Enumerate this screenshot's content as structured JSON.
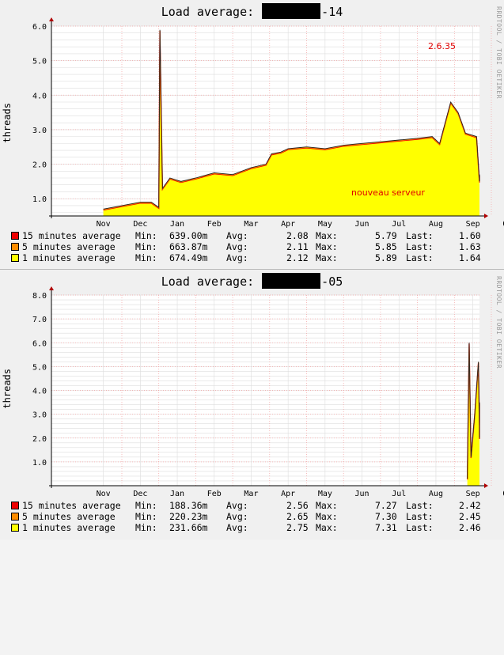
{
  "charts": [
    {
      "title_prefix": "Load average:",
      "title_suffix": "-14",
      "ylabel": "threads",
      "watermark": "RRDTOOL / TOBI OETIKER",
      "months": [
        "Nov",
        "Dec",
        "Jan",
        "Feb",
        "Mar",
        "Apr",
        "May",
        "Jun",
        "Jul",
        "Aug",
        "Sep",
        "Oct"
      ],
      "yticks": [
        "1.0",
        "2.0",
        "3.0",
        "4.0",
        "5.0",
        "6.0"
      ],
      "annotations": {
        "version": "2.6.35",
        "event": "nouveau serveur"
      },
      "legend": [
        {
          "label": "15 minutes average",
          "min": "639.00m",
          "avg": "2.08",
          "max": "5.79",
          "last": "1.60",
          "color": "#ee0000"
        },
        {
          "label": "5 minutes average",
          "min": "663.87m",
          "avg": "2.11",
          "max": "5.85",
          "last": "1.63",
          "color": "#ff8c00"
        },
        {
          "label": "1 minutes average",
          "min": "674.49m",
          "avg": "2.12",
          "max": "5.89",
          "last": "1.64",
          "color": "#ffff00"
        }
      ]
    },
    {
      "title_prefix": "Load average:",
      "title_suffix": "-05",
      "ylabel": "threads",
      "watermark": "RRDTOOL / TOBI OETIKER",
      "months": [
        "Nov",
        "Dec",
        "Jan",
        "Feb",
        "Mar",
        "Apr",
        "May",
        "Jun",
        "Jul",
        "Aug",
        "Sep",
        "Oct"
      ],
      "yticks": [
        "1.0",
        "2.0",
        "3.0",
        "4.0",
        "5.0",
        "6.0",
        "7.0",
        "8.0"
      ],
      "legend": [
        {
          "label": "15 minutes average",
          "min": "188.36m",
          "avg": "2.56",
          "max": "7.27",
          "last": "2.42",
          "color": "#ee0000"
        },
        {
          "label": "5 minutes average",
          "min": "220.23m",
          "avg": "2.65",
          "max": "7.30",
          "last": "2.45",
          "color": "#ff8c00"
        },
        {
          "label": "1 minutes average",
          "min": "231.66m",
          "avg": "2.75",
          "max": "7.31",
          "last": "2.46",
          "color": "#ffff00"
        }
      ]
    }
  ],
  "labels": {
    "min": "Min:",
    "avg": "Avg:",
    "max": "Max:",
    "last": "Last:"
  },
  "chart_data": [
    {
      "type": "area",
      "ylabel": "threads",
      "ylim": [
        0.5,
        6.0
      ],
      "x_unit": "month",
      "x_months": [
        "Nov",
        "Dec",
        "Jan",
        "Feb",
        "Mar",
        "Apr",
        "May",
        "Jun",
        "Jul",
        "Aug",
        "Sep",
        "Oct"
      ],
      "x": [
        -0.5,
        0.0,
        0.5,
        0.8,
        1.0,
        1.03,
        1.1,
        1.3,
        1.6,
        2.0,
        2.5,
        3.0,
        3.5,
        3.9,
        4.05,
        4.3,
        4.5,
        5.0,
        5.5,
        6.0,
        6.5,
        7.0,
        7.5,
        8.0,
        8.4,
        8.6,
        8.9,
        9.1,
        9.3,
        9.6,
        9.75,
        9.9,
        10.0
      ],
      "y": [
        0.7,
        0.8,
        0.9,
        0.9,
        0.75,
        5.89,
        1.3,
        1.6,
        1.5,
        1.6,
        1.75,
        1.7,
        1.9,
        2.0,
        2.3,
        2.35,
        2.45,
        2.5,
        2.45,
        2.55,
        2.6,
        2.65,
        2.7,
        2.75,
        2.8,
        2.6,
        3.8,
        3.5,
        2.9,
        2.8,
        1.5,
        1.7,
        1.64
      ],
      "series": [
        {
          "name": "15 minutes average",
          "min": 0.639,
          "avg": 2.08,
          "max": 5.79,
          "last": 1.6
        },
        {
          "name": "5 minutes average",
          "min": 0.66387,
          "avg": 2.11,
          "max": 5.85,
          "last": 1.63
        },
        {
          "name": "1 minutes average",
          "min": 0.67449,
          "avg": 2.12,
          "max": 5.89,
          "last": 1.64
        }
      ]
    },
    {
      "type": "area",
      "ylabel": "threads",
      "ylim": [
        0.0,
        8.0
      ],
      "x_unit": "month",
      "x_months": [
        "Nov",
        "Dec",
        "Jan",
        "Feb",
        "Mar",
        "Apr",
        "May",
        "Jun",
        "Jul",
        "Aug",
        "Sep",
        "Oct"
      ],
      "x": [
        9.35,
        9.4,
        9.45,
        9.55,
        9.65,
        9.7,
        9.78,
        9.85,
        9.9,
        9.95,
        10.0
      ],
      "y": [
        0.3,
        6.0,
        1.2,
        3.0,
        5.2,
        2.5,
        3.5,
        2.0,
        3.0,
        3.3,
        2.46
      ],
      "series": [
        {
          "name": "15 minutes average",
          "min": 0.18836,
          "avg": 2.56,
          "max": 7.27,
          "last": 2.42
        },
        {
          "name": "5 minutes average",
          "min": 0.22023,
          "avg": 2.65,
          "max": 7.3,
          "last": 2.45
        },
        {
          "name": "1 minutes average",
          "min": 0.23166,
          "avg": 2.75,
          "max": 7.31,
          "last": 2.46
        }
      ]
    }
  ]
}
